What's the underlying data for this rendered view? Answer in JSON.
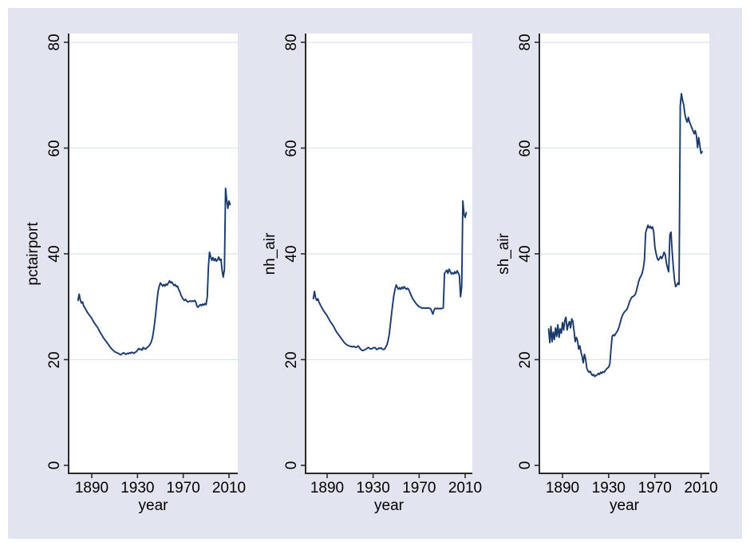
{
  "window": {
    "page_background": "#ffffff",
    "chart_background": "#e2e4ef",
    "plot_background": "#ffffff",
    "grid_color": "#dbe2f3",
    "axis_color": "#2a2a2a",
    "text_color": "#000000"
  },
  "chart_data": {
    "type": "line",
    "layout": "three side-by-side small-multiple line panels (Stata-style), shared x axis ticks, horizontal gridlines, no legend, no title",
    "line_color": "#1b3a6b",
    "xlim": [
      1874,
      2017
    ],
    "ylim": [
      0,
      80
    ],
    "x_ticks": [
      1890,
      1930,
      1970,
      2010
    ],
    "x_tick_labels": [
      "1890",
      "1930",
      "1970",
      "2010"
    ],
    "y_ticks": [
      0,
      20,
      40,
      60,
      80
    ],
    "y_tick_labels": [
      "0",
      "20",
      "40",
      "60",
      "80"
    ],
    "gridlines_at": [
      20,
      40,
      60,
      80
    ],
    "series_start_year": 1878,
    "panels": [
      {
        "ylabel": "pctairport",
        "xlabel": "year",
        "values": [
          31.2,
          32.4,
          31.2,
          30.7,
          30.9,
          30.1,
          29.8,
          29.4,
          29.0,
          28.7,
          28.4,
          28.1,
          27.8,
          27.4,
          27.0,
          26.7,
          26.4,
          26.1,
          25.7,
          25.3,
          24.9,
          24.6,
          24.2,
          23.9,
          23.6,
          23.3,
          23.0,
          22.7,
          22.4,
          22.1,
          21.9,
          21.7,
          21.5,
          21.4,
          21.3,
          21.2,
          21.1,
          20.9,
          21.0,
          21.2,
          21.3,
          21.1,
          21.0,
          21.2,
          21.1,
          21.3,
          21.2,
          21.4,
          21.3,
          21.2,
          21.4,
          21.5,
          21.8,
          22.1,
          21.9,
          22.0,
          21.8,
          22.3,
          22.1,
          22.0,
          22.2,
          22.4,
          22.6,
          22.9,
          23.3,
          24.1,
          25.3,
          26.9,
          28.9,
          31.0,
          32.9,
          33.9,
          34.5,
          34.2,
          33.9,
          34.2,
          33.9,
          34.3,
          34.1,
          34.5,
          34.9,
          34.5,
          34.7,
          34.3,
          34.0,
          34.2,
          33.8,
          33.9,
          33.3,
          32.8,
          32.2,
          31.8,
          31.4,
          31.2,
          31.4,
          31.1,
          30.9,
          31.0,
          31.1,
          31.0,
          31.1,
          31.0,
          31.2,
          30.9,
          30.1,
          29.9,
          30.2,
          30.4,
          30.2,
          30.5,
          30.3,
          30.6,
          30.4,
          31.9,
          37.5,
          40.3,
          39.4,
          38.8,
          39.3,
          38.7,
          39.1,
          38.6,
          38.9,
          39.4,
          38.8,
          39.0,
          36.8,
          35.6,
          37.0,
          52.4,
          50.2,
          48.6,
          50.0,
          49.3
        ]
      },
      {
        "ylabel": "nh_air",
        "xlabel": "year",
        "values": [
          31.5,
          32.9,
          31.7,
          31.2,
          31.5,
          30.8,
          30.4,
          30.0,
          29.6,
          29.2,
          28.9,
          28.6,
          28.3,
          27.9,
          27.5,
          27.1,
          26.8,
          26.5,
          26.1,
          25.7,
          25.3,
          25.0,
          24.7,
          24.4,
          24.1,
          23.8,
          23.5,
          23.2,
          23.0,
          22.8,
          22.7,
          22.6,
          22.5,
          22.5,
          22.4,
          22.5,
          22.4,
          22.3,
          22.4,
          22.6,
          22.3,
          22.0,
          21.8,
          21.7,
          21.8,
          21.9,
          22.0,
          22.2,
          22.3,
          22.1,
          22.0,
          22.1,
          22.2,
          22.3,
          22.2,
          21.9,
          22.0,
          22.2,
          22.1,
          22.2,
          22.0,
          21.9,
          22.0,
          22.4,
          22.8,
          23.6,
          24.8,
          26.7,
          28.6,
          30.5,
          32.1,
          33.3,
          34.1,
          33.7,
          33.3,
          33.6,
          33.3,
          33.7,
          33.4,
          33.8,
          33.5,
          33.3,
          33.5,
          33.2,
          32.7,
          32.2,
          31.7,
          31.3,
          31.0,
          30.7,
          30.4,
          30.2,
          30.0,
          29.9,
          29.8,
          29.7,
          29.8,
          29.7,
          29.8,
          29.7,
          29.8,
          29.7,
          29.6,
          29.1,
          28.6,
          29.4,
          29.7,
          29.6,
          29.7,
          29.6,
          29.7,
          29.6,
          29.7,
          29.8,
          36.3,
          36.6,
          36.9,
          36.3,
          37.1,
          36.7,
          36.2,
          36.4,
          36.2,
          36.6,
          36.3,
          36.8,
          36.4,
          35.9,
          31.9,
          33.8,
          50.0,
          47.5,
          46.9,
          47.8
        ]
      },
      {
        "ylabel": "sh_air",
        "xlabel": "year",
        "values": [
          25.8,
          23.2,
          26.3,
          23.4,
          25.2,
          23.8,
          26.0,
          24.4,
          26.6,
          24.2,
          25.8,
          25.0,
          27.0,
          25.6,
          27.4,
          28.0,
          25.6,
          26.6,
          27.2,
          26.0,
          27.7,
          27.2,
          25.4,
          23.4,
          24.2,
          23.6,
          22.0,
          22.6,
          21.4,
          20.6,
          19.4,
          21.0,
          20.2,
          18.4,
          17.9,
          17.6,
          17.8,
          17.3,
          17.0,
          17.2,
          16.8,
          17.0,
          17.1,
          17.4,
          17.2,
          17.6,
          17.4,
          17.7,
          17.6,
          17.9,
          18.2,
          18.4,
          18.6,
          19.2,
          22.0,
          24.4,
          24.7,
          24.5,
          24.9,
          25.2,
          25.6,
          26.2,
          27.0,
          27.8,
          28.4,
          28.8,
          29.1,
          29.3,
          29.6,
          30.2,
          30.9,
          31.4,
          31.8,
          31.9,
          32.1,
          32.3,
          33.0,
          33.9,
          34.8,
          35.4,
          35.8,
          36.3,
          37.3,
          38.8,
          44.0,
          44.7,
          45.4,
          44.9,
          45.2,
          44.8,
          45.1,
          44.1,
          41.3,
          40.1,
          39.2,
          38.8,
          39.1,
          39.5,
          39.1,
          39.6,
          40.3,
          39.8,
          38.3,
          37.3,
          36.6,
          43.6,
          44.1,
          40.3,
          37.5,
          35.0,
          33.8,
          34.1,
          34.5,
          34.2,
          68.0,
          70.3,
          69.0,
          68.2,
          66.4,
          65.5,
          64.9,
          65.8,
          64.9,
          64.4,
          63.8,
          63.3,
          62.7,
          63.3,
          62.3,
          60.1,
          62.0,
          60.4,
          59.0,
          59.3
        ]
      }
    ]
  }
}
